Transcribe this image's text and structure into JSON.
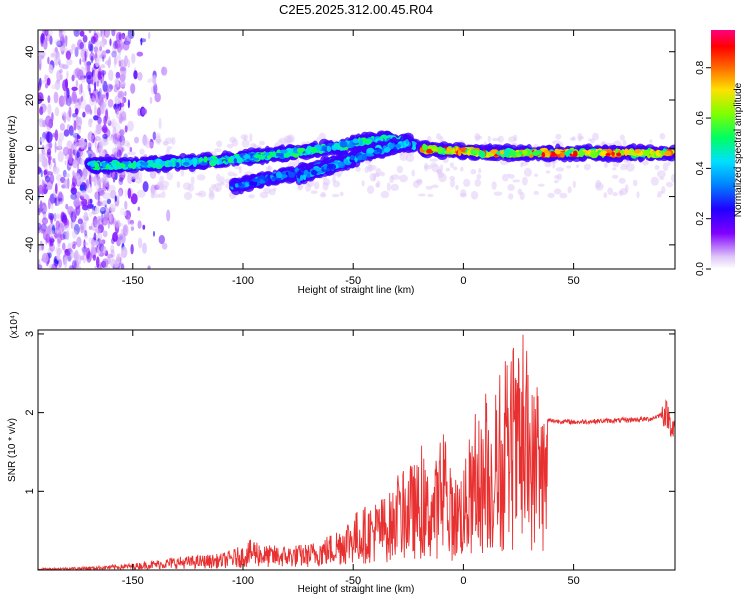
{
  "title": "C2E5.2025.312.00.45.R04",
  "chart_data": [
    {
      "type": "heatmap",
      "xlabel": "Height of straight line (km)",
      "ylabel": "Frequency (Hz)",
      "xlim": [
        -193,
        96
      ],
      "ylim": [
        -50,
        49
      ],
      "x_ticks": [
        -150,
        -100,
        -50,
        0,
        50
      ],
      "y_ticks": [
        -40,
        -20,
        0,
        20,
        40
      ],
      "colorbar": {
        "label": "Normalized spectral amplitude",
        "range": [
          0,
          0.95
        ],
        "ticks": [
          0.0,
          0.2,
          0.4,
          0.6,
          0.8
        ],
        "colors": [
          "#e8d8f8",
          "#a040ff",
          "#4000e0",
          "#0030ff",
          "#00c0ff",
          "#00ff80",
          "#40ff00",
          "#ffff00",
          "#ff8000",
          "#ff0000",
          "#ff0080"
        ]
      },
      "traces": [
        {
          "x": [
            -170,
            -150,
            -130,
            -110,
            -90,
            -70,
            -55,
            -45,
            -35,
            -28,
            -22
          ],
          "y": [
            -7,
            -7,
            -6,
            -5,
            -3,
            -1,
            1,
            3,
            4,
            3,
            1
          ],
          "amp": 0.55
        },
        {
          "x": [
            -105,
            -90,
            -80,
            -70,
            -60,
            -50,
            -40,
            -30,
            -25
          ],
          "y": [
            -16,
            -13,
            -11,
            -9,
            -6,
            -3,
            -1,
            1,
            3
          ],
          "amp": 0.4
        },
        {
          "x": [
            -75,
            -65,
            -55,
            -45,
            -40,
            -35,
            -30,
            -25
          ],
          "y": [
            -12,
            -9,
            -6,
            -3,
            -1,
            0,
            1,
            2
          ],
          "amp": 0.45
        },
        {
          "x": [
            -20,
            -10,
            0,
            10,
            20,
            30,
            40,
            60,
            80,
            96
          ],
          "y": [
            0,
            -1,
            -1,
            -2,
            -2,
            -2,
            -2,
            -2,
            -2,
            -2
          ],
          "amp": 0.9
        }
      ]
    },
    {
      "type": "line",
      "xlabel": "Height of straight line (km)",
      "ylabel": "SNR (10 * v/v)",
      "multiplier": "(x10⁴)",
      "xlim": [
        -193,
        96
      ],
      "ylim": [
        0,
        3.05
      ],
      "x_ticks": [
        -150,
        -100,
        -50,
        0,
        50
      ],
      "y_ticks": [
        1,
        2,
        3
      ],
      "color": "#e83030",
      "envelope": [
        {
          "x": -193,
          "y": 0.02
        },
        {
          "x": -170,
          "y": 0.04
        },
        {
          "x": -150,
          "y": 0.08
        },
        {
          "x": -140,
          "y": 0.12
        },
        {
          "x": -130,
          "y": 0.16
        },
        {
          "x": -120,
          "y": 0.18
        },
        {
          "x": -110,
          "y": 0.2
        },
        {
          "x": -100,
          "y": 0.3
        },
        {
          "x": -95,
          "y": 0.4
        },
        {
          "x": -90,
          "y": 0.3
        },
        {
          "x": -80,
          "y": 0.3
        },
        {
          "x": -70,
          "y": 0.32
        },
        {
          "x": -60,
          "y": 0.45
        },
        {
          "x": -50,
          "y": 0.7
        },
        {
          "x": -40,
          "y": 0.85
        },
        {
          "x": -30,
          "y": 1.0
        },
        {
          "x": -25,
          "y": 1.3
        },
        {
          "x": -20,
          "y": 1.3
        },
        {
          "x": -15,
          "y": 1.2
        },
        {
          "x": -10,
          "y": 1.5
        },
        {
          "x": -5,
          "y": 1.1
        },
        {
          "x": 0,
          "y": 1.3
        },
        {
          "x": 5,
          "y": 1.6
        },
        {
          "x": 10,
          "y": 1.9
        },
        {
          "x": 15,
          "y": 2.0
        },
        {
          "x": 20,
          "y": 2.2
        },
        {
          "x": 25,
          "y": 2.5
        },
        {
          "x": 30,
          "y": 2.3
        },
        {
          "x": 35,
          "y": 2.1
        },
        {
          "x": 38,
          "y": 1.9
        },
        {
          "x": 50,
          "y": 1.88
        },
        {
          "x": 70,
          "y": 1.9
        },
        {
          "x": 85,
          "y": 1.92
        },
        {
          "x": 92,
          "y": 2.0
        },
        {
          "x": 96,
          "y": 1.75
        }
      ]
    }
  ]
}
